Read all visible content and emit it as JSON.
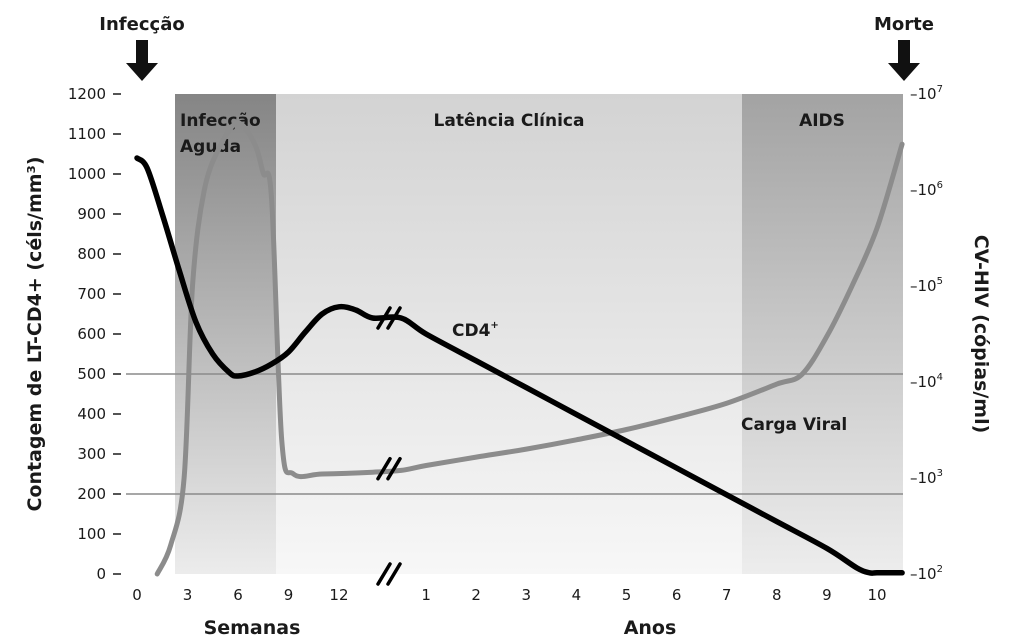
{
  "chart_data": {
    "type": "line",
    "title": "",
    "events": {
      "start": "Infecção",
      "end": "Morte"
    },
    "phases": [
      "Infecção Aguda",
      "Latência Clínica",
      "AIDS"
    ],
    "y_left": {
      "label": "Contagem de LT-CD4+ (céls/mm³)",
      "ticks": [
        "1200",
        "1100",
        "1000",
        "900",
        "800",
        "700",
        "600",
        "500",
        "400",
        "300",
        "200",
        "100",
        "0"
      ],
      "ylim": [
        0,
        1200
      ],
      "reference_lines": [
        500,
        200
      ]
    },
    "y_right": {
      "label": "CV-HIV (cópias/ml)",
      "scale": "log",
      "tick_exponents": [
        "7",
        "6",
        "5",
        "4",
        "3",
        "2"
      ],
      "tick_prefix": "–10",
      "ylim": [
        "10^2",
        "10^7"
      ]
    },
    "x_axis": {
      "segments": [
        {
          "label": "Semanas",
          "ticks": [
            "0",
            "3",
            "6",
            "9",
            "12"
          ]
        },
        {
          "label": "Anos",
          "ticks": [
            "1",
            "2",
            "3",
            "4",
            "5",
            "6",
            "7",
            "8",
            "9",
            "10"
          ]
        }
      ]
    },
    "series": [
      {
        "name": "CD4",
        "name_sup": "+",
        "axis": "left",
        "color": "#000000",
        "weeks": [
          [
            0,
            1040
          ],
          [
            0.6,
            1015
          ],
          [
            1.5,
            900
          ],
          [
            2.5,
            760
          ],
          [
            3.5,
            630
          ],
          [
            4.5,
            550
          ],
          [
            5.5,
            503
          ],
          [
            6,
            495
          ],
          [
            7,
            505
          ],
          [
            8,
            525
          ],
          [
            9,
            555
          ],
          [
            10,
            605
          ],
          [
            11,
            650
          ],
          [
            12,
            668
          ],
          [
            13,
            660
          ],
          [
            14,
            640
          ]
        ],
        "years": [
          [
            0.5,
            640
          ],
          [
            1,
            600
          ],
          [
            2,
            533
          ],
          [
            3,
            466
          ],
          [
            4,
            399
          ],
          [
            5,
            332
          ],
          [
            6,
            265
          ],
          [
            7,
            198
          ],
          [
            8,
            131
          ],
          [
            9,
            64
          ],
          [
            9.6,
            15
          ],
          [
            9.85,
            3
          ],
          [
            10,
            3
          ],
          [
            10.5,
            3
          ]
        ]
      },
      {
        "name": "Carga Viral",
        "axis": "right",
        "color": "#8c8c8c",
        "weeks": [
          [
            1.2,
            100
          ],
          [
            2,
            200
          ],
          [
            2.8,
            1000
          ],
          [
            3.3,
            100000
          ],
          [
            4,
            1000000
          ],
          [
            5,
            3000000
          ],
          [
            6,
            5000000
          ],
          [
            7,
            3000000
          ],
          [
            7.5,
            1500000
          ],
          [
            8,
            800000
          ],
          [
            8.6,
            2500
          ],
          [
            9.3,
            1100
          ],
          [
            11,
            1100
          ],
          [
            14,
            1150
          ]
        ],
        "years": [
          [
            0.5,
            1200
          ],
          [
            1,
            1350
          ],
          [
            2,
            1650
          ],
          [
            3,
            2000
          ],
          [
            4,
            2500
          ],
          [
            5,
            3200
          ],
          [
            6,
            4300
          ],
          [
            7,
            6000
          ],
          [
            8,
            9500
          ],
          [
            8.5,
            12000
          ],
          [
            9,
            30000
          ],
          [
            9.5,
            100000
          ],
          [
            10,
            400000
          ],
          [
            10.5,
            3000000
          ]
        ]
      }
    ],
    "grid": false
  }
}
